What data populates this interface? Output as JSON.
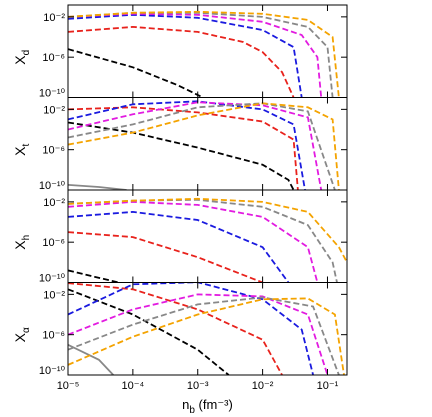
{
  "chart_data": [
    {
      "type": "line",
      "ylabel": [
        "X",
        "d"
      ],
      "xscale": "log",
      "yscale": "log",
      "xlim": [
        1e-05,
        0.2
      ],
      "ylim": [
        1e-10,
        0.15
      ],
      "xticks": [
        1e-05,
        0.0001,
        0.001,
        0.01,
        0.1
      ],
      "xtick_labels": false,
      "yticks": [
        {
          "value": 1e-10,
          "label": "10⁻¹⁰"
        },
        {
          "value": 1e-06,
          "label": "10⁻⁶"
        },
        {
          "value": 0.01,
          "label": "10⁻²"
        }
      ],
      "series": [
        {
          "color": "#000000",
          "dash": true,
          "x": [
            1e-05,
            0.0001,
            0.0005,
            0.0012
          ],
          "values": [
            6.3e-06,
            1e-07,
            1.6e-09,
            1e-10
          ]
        },
        {
          "color": "#e8221c",
          "dash": true,
          "x": [
            1e-05,
            0.0001,
            0.001,
            0.005,
            0.01,
            0.02,
            0.03
          ],
          "values": [
            0.00032,
            0.001,
            0.00032,
            3.2e-05,
            3.2e-06,
            3.2e-08,
            1e-10
          ]
        },
        {
          "color": "#1a1adf",
          "dash": true,
          "x": [
            1e-05,
            0.0001,
            0.001,
            0.01,
            0.03,
            0.04
          ],
          "values": [
            0.0063,
            0.016,
            0.008,
            0.0005,
            1e-05,
            1e-10
          ]
        },
        {
          "color": "#e21be0",
          "dash": true,
          "x": [
            1e-05,
            0.0001,
            0.001,
            0.01,
            0.04,
            0.07,
            0.08
          ],
          "values": [
            0.01,
            0.02,
            0.016,
            0.0032,
            0.00016,
            1e-06,
            1e-10
          ]
        },
        {
          "color": "#888888",
          "dash": true,
          "x": [
            1e-05,
            0.0001,
            0.001,
            0.01,
            0.05,
            0.1,
            0.12
          ],
          "values": [
            0.01,
            0.025,
            0.025,
            0.01,
            0.001,
            1e-05,
            1e-10
          ]
        },
        {
          "color": "#f4a300",
          "dash": true,
          "x": [
            1e-05,
            0.0001,
            0.001,
            0.01,
            0.05,
            0.12,
            0.15
          ],
          "values": [
            0.01,
            0.025,
            0.032,
            0.02,
            0.005,
            0.0001,
            1e-10
          ]
        }
      ]
    },
    {
      "type": "line",
      "ylabel": [
        "X",
        "t"
      ],
      "xscale": "log",
      "yscale": "log",
      "xlim": [
        1e-05,
        0.2
      ],
      "ylim": [
        1e-10,
        0.15
      ],
      "xticks": [
        1e-05,
        0.0001,
        0.001,
        0.01,
        0.1
      ],
      "xtick_labels": false,
      "yticks": [
        {
          "value": 1e-10,
          "label": "10⁻¹⁰"
        },
        {
          "value": 1e-06,
          "label": "10⁻⁶"
        },
        {
          "value": 0.01,
          "label": "10⁻²"
        }
      ],
      "series": [
        {
          "color": "#888888",
          "dash": false,
          "x": [
            1e-05,
            3e-05,
            8e-05
          ],
          "values": [
            3.2e-10,
            2e-10,
            1e-10
          ]
        },
        {
          "color": "#000000",
          "dash": true,
          "x": [
            1e-05,
            0.0001,
            0.001,
            0.01,
            0.025,
            0.03
          ],
          "values": [
            0.0005,
            5e-05,
            1.6e-06,
            3.2e-08,
            1e-09,
            1e-10
          ]
        },
        {
          "color": "#e8221c",
          "dash": true,
          "x": [
            1e-05,
            0.0001,
            0.001,
            0.01,
            0.03,
            0.035
          ],
          "values": [
            0.01,
            0.016,
            0.005,
            0.00063,
            1e-05,
            1e-10
          ]
        },
        {
          "color": "#1a1adf",
          "dash": true,
          "x": [
            1e-05,
            0.0001,
            0.001,
            0.01,
            0.03,
            0.045
          ],
          "values": [
            0.001,
            0.032,
            0.063,
            0.01,
            0.00032,
            1e-10
          ]
        },
        {
          "color": "#e21be0",
          "dash": true,
          "x": [
            1e-05,
            0.0001,
            0.001,
            0.01,
            0.05,
            0.08
          ],
          "values": [
            0.0001,
            0.0032,
            0.05,
            0.025,
            0.0016,
            1e-10
          ]
        },
        {
          "color": "#888888",
          "dash": true,
          "x": [
            1e-05,
            0.0001,
            0.001,
            0.01,
            0.05,
            0.13
          ],
          "values": [
            1.6e-05,
            0.00032,
            0.016,
            0.04,
            0.0063,
            1e-10
          ]
        },
        {
          "color": "#f4a300",
          "dash": true,
          "x": [
            1e-05,
            0.0001,
            0.001,
            0.01,
            0.05,
            0.12,
            0.15
          ],
          "values": [
            3.2e-06,
            5e-05,
            0.0025,
            0.04,
            0.016,
            0.001,
            1e-10
          ]
        }
      ]
    },
    {
      "type": "line",
      "ylabel": [
        "X",
        "h"
      ],
      "xscale": "log",
      "yscale": "log",
      "xlim": [
        1e-05,
        0.2
      ],
      "ylim": [
        1e-10,
        0.15
      ],
      "xticks": [
        1e-05,
        0.0001,
        0.001,
        0.01,
        0.1
      ],
      "xtick_labels": false,
      "yticks": [
        {
          "value": 1e-10,
          "label": "10⁻¹⁰"
        },
        {
          "value": 1e-06,
          "label": "10⁻⁶"
        },
        {
          "value": 0.01,
          "label": "10⁻²"
        }
      ],
      "series": [
        {
          "color": "#000000",
          "dash": true,
          "x": [
            1e-05,
            6e-05
          ],
          "values": [
            1.6e-09,
            1e-10
          ]
        },
        {
          "color": "#e8221c",
          "dash": true,
          "x": [
            1e-05,
            0.0001,
            0.001,
            0.01
          ],
          "values": [
            1e-05,
            3.2e-06,
            3.2e-08,
            1e-10
          ]
        },
        {
          "color": "#1a1adf",
          "dash": true,
          "x": [
            1e-05,
            0.0001,
            0.001,
            0.01,
            0.025
          ],
          "values": [
            0.00032,
            0.001,
            0.00016,
            3.2e-07,
            1e-10
          ]
        },
        {
          "color": "#e21be0",
          "dash": true,
          "x": [
            1e-05,
            0.0001,
            0.001,
            0.01,
            0.05,
            0.07
          ],
          "values": [
            0.0032,
            0.01,
            0.005,
            0.00032,
            3.2e-07,
            1e-10
          ]
        },
        {
          "color": "#888888",
          "dash": true,
          "x": [
            1e-05,
            0.0001,
            0.001,
            0.01,
            0.05,
            0.12,
            0.14
          ],
          "values": [
            0.0063,
            0.013,
            0.016,
            0.0032,
            5e-05,
            1e-08,
            1e-10
          ]
        },
        {
          "color": "#f4a300",
          "dash": true,
          "x": [
            1e-05,
            0.0001,
            0.001,
            0.01,
            0.05,
            0.15,
            0.2
          ],
          "values": [
            0.0063,
            0.013,
            0.02,
            0.01,
            0.001,
            3.2e-07,
            1e-08
          ]
        }
      ]
    },
    {
      "type": "line",
      "ylabel": [
        "X",
        "α"
      ],
      "xlabel": [
        "n",
        "b",
        " (fm⁻³)"
      ],
      "xscale": "log",
      "yscale": "log",
      "xlim": [
        1e-05,
        0.2
      ],
      "ylim": [
        1e-10,
        0.15
      ],
      "xticks": [
        {
          "value": 1e-05,
          "label": "10⁻⁵"
        },
        {
          "value": 0.0001,
          "label": "10⁻⁴"
        },
        {
          "value": 0.001,
          "label": "10⁻³"
        },
        {
          "value": 0.01,
          "label": "10⁻²"
        },
        {
          "value": 0.1,
          "label": "10⁻¹"
        }
      ],
      "xtick_labels": true,
      "yticks": [
        {
          "value": 1e-10,
          "label": "10⁻¹⁰"
        },
        {
          "value": 1e-06,
          "label": "10⁻⁶"
        },
        {
          "value": 0.01,
          "label": "10⁻²"
        }
      ],
      "series": [
        {
          "color": "#888888",
          "dash": false,
          "x": [
            1e-05,
            3e-05,
            5e-05
          ],
          "values": [
            1e-07,
            3.2e-09,
            1e-10
          ]
        },
        {
          "color": "#000000",
          "dash": true,
          "x": [
            1e-05,
            0.0001,
            0.001,
            0.003
          ],
          "values": [
            0.032,
            0.0001,
            3.2e-08,
            1e-10
          ]
        },
        {
          "color": "#e8221c",
          "dash": true,
          "x": [
            1e-05,
            0.0001,
            0.001,
            0.01,
            0.02
          ],
          "values": [
            0.13,
            0.032,
            0.00032,
            3.2e-07,
            1e-10
          ]
        },
        {
          "color": "#1a1adf",
          "dash": true,
          "x": [
            1e-05,
            0.0001,
            0.001,
            0.01,
            0.04,
            0.06
          ],
          "values": [
            0.0001,
            0.1,
            0.16,
            0.0032,
            3.2e-06,
            1e-10
          ]
        },
        {
          "color": "#e21be0",
          "dash": true,
          "x": [
            1e-05,
            0.0001,
            0.001,
            0.01,
            0.05,
            0.1
          ],
          "values": [
            1e-06,
            0.00032,
            0.01,
            0.0063,
            0.0001,
            1e-10
          ]
        },
        {
          "color": "#888888",
          "dash": true,
          "x": [
            1e-05,
            0.0001,
            0.001,
            0.01,
            0.06,
            0.15
          ],
          "values": [
            3.2e-08,
            1e-05,
            0.001,
            0.005,
            0.00063,
            1e-10
          ]
        },
        {
          "color": "#f4a300",
          "dash": true,
          "x": [
            1e-05,
            0.0001,
            0.001,
            0.01,
            0.05,
            0.13,
            0.18
          ],
          "values": [
            1e-09,
            6.3e-07,
            0.0001,
            0.0032,
            0.004,
            0.0001,
            1e-10
          ]
        }
      ]
    }
  ]
}
